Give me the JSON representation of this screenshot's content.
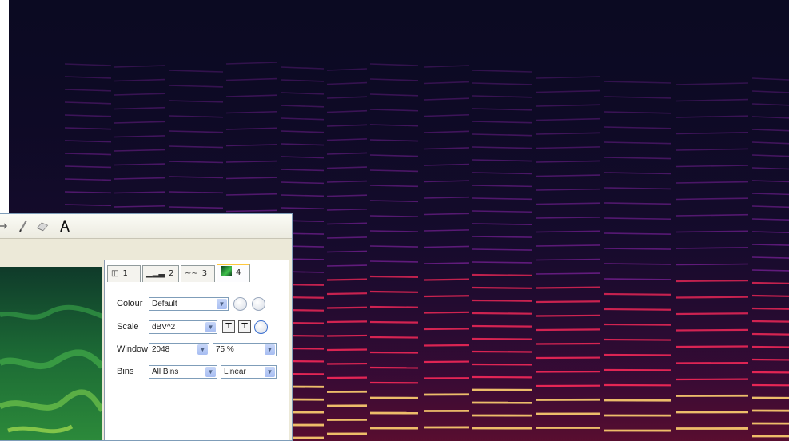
{
  "tabs": [
    {
      "label": "1",
      "icon": "panes-icon"
    },
    {
      "label": "2",
      "icon": "waveform-bars-icon"
    },
    {
      "label": "3",
      "icon": "waveform-icon"
    },
    {
      "label": "4",
      "icon": "spectrogram-icon",
      "active": true
    }
  ],
  "properties": {
    "colour": {
      "label": "Colour",
      "value": "Default"
    },
    "scale": {
      "label": "Scale",
      "value": "dBV^2"
    },
    "window": {
      "label": "Window",
      "value": "2048",
      "overlap": "75 %"
    },
    "bins": {
      "label": "Bins",
      "value": "All Bins",
      "frequency_scale": "Linear"
    }
  },
  "toolbar": {
    "tools": [
      "move-arrow-icon",
      "pencil-icon",
      "eraser-icon",
      "measure-compass-icon"
    ]
  },
  "colors": {
    "spectro_bg": "#0b0a22",
    "harmonic_high": "#ffd070",
    "harmonic_mid": "#ff2a5a",
    "harmonic_low": "#a52ac8",
    "pane_green": "#2f9a45",
    "active_tab_accent": "#ffc83c"
  }
}
